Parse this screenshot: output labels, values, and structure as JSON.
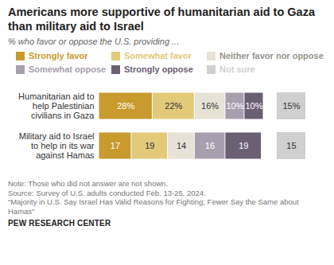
{
  "chart_data": {
    "type": "bar",
    "title": "Americans more supportive of humanitarian aid to Gaza than military aid to Israel",
    "subtitle": "% who favor or oppose the U.S. providing ...",
    "orientation": "horizontal",
    "stacked": true,
    "data_labels": true,
    "tick_labels": "y",
    "legend": "top",
    "categories": [
      "Humanitarian aid to help Palestinian civilians in Gaza",
      "Military aid to Israel to help in its war against Hamas"
    ],
    "series": [
      {
        "name": "Strongly favor",
        "color": "#c99a2e",
        "values": [
          28,
          17
        ],
        "value_labels": [
          "28%",
          "17"
        ]
      },
      {
        "name": "Somewhat favor",
        "color": "#e3c97a",
        "values": [
          22,
          19
        ],
        "value_labels": [
          "22%",
          "19"
        ]
      },
      {
        "name": "Neither favor nor oppose",
        "color": "#e6e2d6",
        "values": [
          16,
          14
        ],
        "value_labels": [
          "16%",
          "14"
        ]
      },
      {
        "name": "Somewhat oppose",
        "color": "#a89fae",
        "values": [
          10,
          16
        ],
        "value_labels": [
          "10%",
          "16"
        ]
      },
      {
        "name": "Strongly oppose",
        "color": "#6b6072",
        "values": [
          10,
          19
        ],
        "value_labels": [
          "10%",
          "19"
        ]
      },
      {
        "name": "Not sure",
        "color": "#d0d0d0",
        "values": [
          15,
          15
        ],
        "value_labels": [
          "15%",
          "15"
        ]
      }
    ],
    "note": "Note: Those who did not answer are not shown.",
    "source": "Source: Survey of U.S. adults conducted Feb. 13-25, 2024.",
    "report": "“Majority in U.S. Say Israel Has Valid Reasons for Fighting; Fewer Say the Same about Hamas”",
    "credit": "PEW RESEARCH CENTER"
  }
}
